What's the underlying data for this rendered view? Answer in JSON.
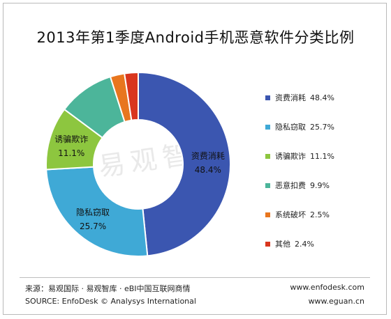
{
  "watermark": "易观智库",
  "chart_data": {
    "type": "pie",
    "donut": true,
    "title": "2013年第1季度Android手机恶意软件分类比例",
    "categories": [
      "资费消耗",
      "隐私窃取",
      "诱骗欺诈",
      "恶意扣费",
      "系统破坏",
      "其他"
    ],
    "values": [
      48.4,
      25.7,
      11.1,
      9.9,
      2.5,
      2.4
    ],
    "value_labels": [
      "48.4%",
      "25.7%",
      "11.1%",
      "9.9%",
      "2.5%",
      "2.4%"
    ],
    "colors": [
      "#3b56b0",
      "#3fa9d6",
      "#8dc63f",
      "#4cb59a",
      "#e8761e",
      "#d9361e"
    ],
    "legend_position": "right",
    "slice_labels_shown": [
      "资费消耗",
      "隐私窃取",
      "诱骗欺诈"
    ]
  },
  "footer": {
    "source_cn": "来源：易观国际 · 易观智库 · eBI中国互联网商情",
    "source_en": "SOURCE: EnfoDesk © Analysys International",
    "url1": "www.enfodesk.com",
    "url2": "www.eguan.cn"
  }
}
